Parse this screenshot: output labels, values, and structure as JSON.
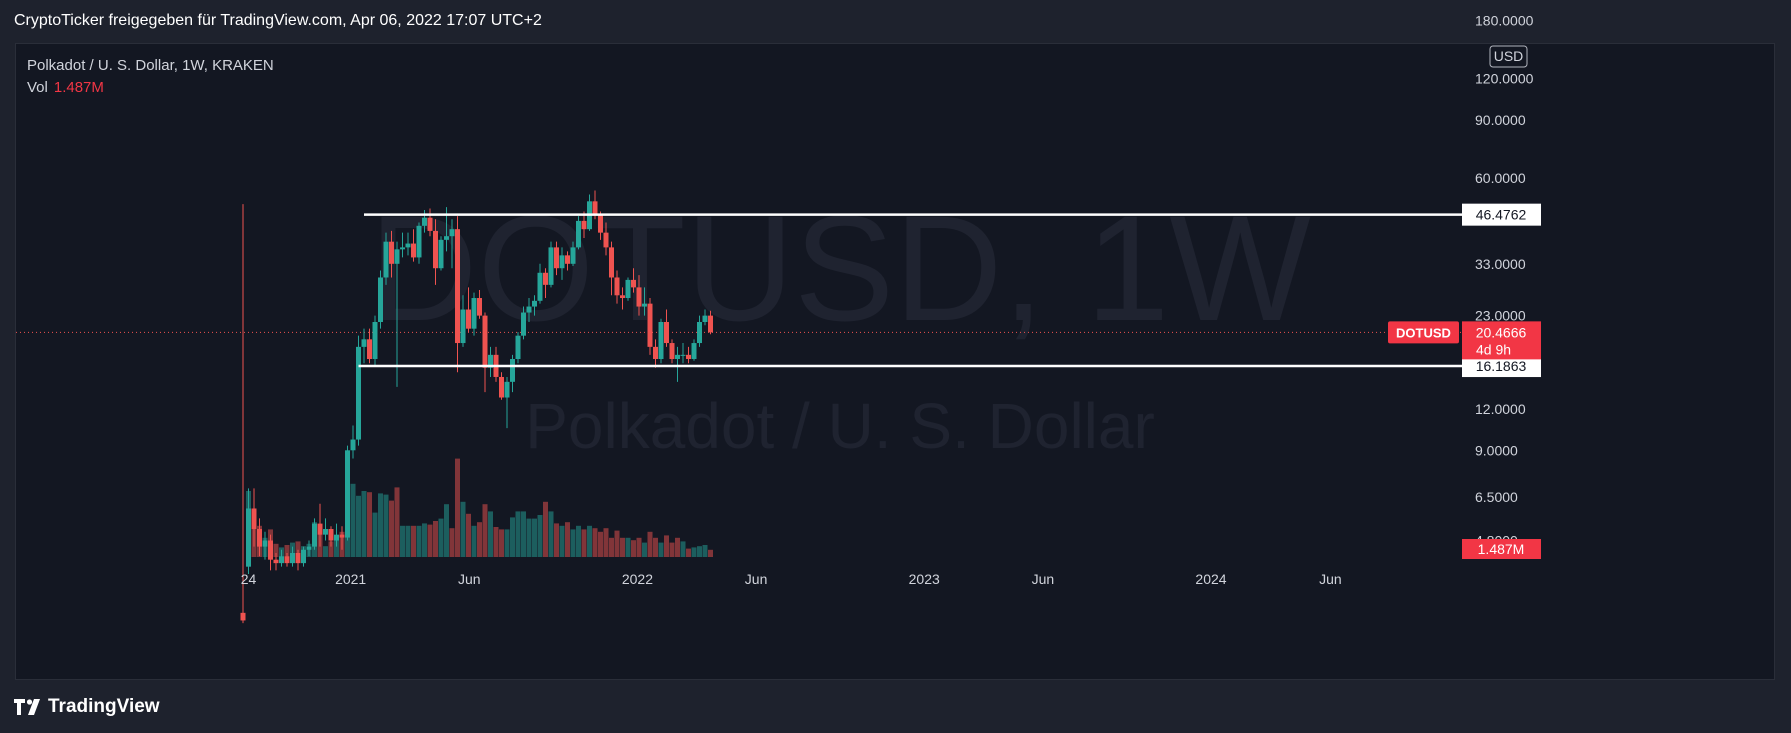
{
  "header": {
    "text": "CryptoTicker freigegeben für TradingView.com, Apr 06, 2022 17:07 UTC+2"
  },
  "legend": {
    "title": "Polkadot / U. S. Dollar, 1W, KRAKEN",
    "vol_label": "Vol",
    "vol_value": "1.487M"
  },
  "watermark": {
    "symbol": "DOTUSD, 1W",
    "name": "Polkadot / U. S. Dollar"
  },
  "footer": {
    "brand": "TradingView"
  },
  "colors": {
    "up": "#26a69a",
    "down": "#ef5350",
    "background": "#131722",
    "frame": "#1e222d",
    "text": "#d1d4dc"
  },
  "chart_data": {
    "type": "candlestick",
    "title": "Polkadot / U. S. Dollar, 1W, KRAKEN",
    "y_scale": "log",
    "currency": "USD",
    "y_ticks": [
      "180.0000",
      "120.0000",
      "90.0000",
      "60.0000",
      "33.0000",
      "23.0000",
      "12.0000",
      "9.0000",
      "6.5000",
      "4.8000"
    ],
    "x_ticks": [
      "24",
      "2021",
      "Jun",
      "2022",
      "Jun",
      "2023",
      "Jun",
      "2024",
      "Jun"
    ],
    "x_start": "2020-08-17",
    "last_price": {
      "symbol": "DOTUSD",
      "value": "20.4666",
      "countdown": "4d 9h"
    },
    "volume_label": "1.487M",
    "horizontal_lines": [
      {
        "value": 46.4762,
        "label": "46.4762",
        "from": "2021-01-18"
      },
      {
        "value": 16.1863,
        "label": "16.1863",
        "from": "2021-01-11"
      }
    ],
    "candles": [
      {
        "t": "2020-08-17",
        "o": 2.9,
        "h": 50,
        "l": 2.7,
        "c": 2.75
      },
      {
        "t": "2020-08-24",
        "o": 4.0,
        "h": 6.9,
        "l": 3.8,
        "c": 6.0
      },
      {
        "t": "2020-08-31",
        "o": 6.0,
        "h": 6.9,
        "l": 4.6,
        "c": 5.2
      },
      {
        "t": "2020-09-07",
        "o": 5.2,
        "h": 5.6,
        "l": 4.3,
        "c": 4.6
      },
      {
        "t": "2020-09-14",
        "o": 4.6,
        "h": 5.1,
        "l": 4.2,
        "c": 4.8
      },
      {
        "t": "2020-09-21",
        "o": 4.8,
        "h": 5.0,
        "l": 3.9,
        "c": 4.2
      },
      {
        "t": "2020-09-28",
        "o": 4.2,
        "h": 4.4,
        "l": 3.9,
        "c": 4.1
      },
      {
        "t": "2020-10-05",
        "o": 4.1,
        "h": 4.5,
        "l": 4.0,
        "c": 4.3
      },
      {
        "t": "2020-10-12",
        "o": 4.3,
        "h": 4.4,
        "l": 4.0,
        "c": 4.1
      },
      {
        "t": "2020-10-19",
        "o": 4.1,
        "h": 4.6,
        "l": 4.0,
        "c": 4.4
      },
      {
        "t": "2020-10-26",
        "o": 4.4,
        "h": 4.5,
        "l": 3.9,
        "c": 4.1
      },
      {
        "t": "2020-11-02",
        "o": 4.1,
        "h": 4.6,
        "l": 4.0,
        "c": 4.5
      },
      {
        "t": "2020-11-09",
        "o": 4.5,
        "h": 4.8,
        "l": 4.3,
        "c": 4.6
      },
      {
        "t": "2020-11-16",
        "o": 4.6,
        "h": 5.6,
        "l": 4.5,
        "c": 5.4
      },
      {
        "t": "2020-11-23",
        "o": 5.4,
        "h": 6.2,
        "l": 4.6,
        "c": 5.0
      },
      {
        "t": "2020-11-30",
        "o": 5.0,
        "h": 5.6,
        "l": 4.8,
        "c": 5.2
      },
      {
        "t": "2020-12-07",
        "o": 5.2,
        "h": 5.3,
        "l": 4.6,
        "c": 4.8
      },
      {
        "t": "2020-12-14",
        "o": 4.8,
        "h": 5.4,
        "l": 4.6,
        "c": 5.0
      },
      {
        "t": "2020-12-21",
        "o": 5.0,
        "h": 5.3,
        "l": 4.5,
        "c": 4.9
      },
      {
        "t": "2020-12-28",
        "o": 4.9,
        "h": 9.3,
        "l": 4.8,
        "c": 9.0
      },
      {
        "t": "2021-01-04",
        "o": 9.0,
        "h": 10.7,
        "l": 8.5,
        "c": 9.7
      },
      {
        "t": "2021-01-11",
        "o": 9.7,
        "h": 20,
        "l": 9.3,
        "c": 18.5
      },
      {
        "t": "2021-01-18",
        "o": 18.5,
        "h": 21.0,
        "l": 16.5,
        "c": 19.5
      },
      {
        "t": "2021-01-25",
        "o": 19.5,
        "h": 21.0,
        "l": 16.5,
        "c": 17.0
      },
      {
        "t": "2021-02-01",
        "o": 17.0,
        "h": 23.0,
        "l": 16.3,
        "c": 22.0
      },
      {
        "t": "2021-02-08",
        "o": 22.0,
        "h": 31.5,
        "l": 21.0,
        "c": 30.0
      },
      {
        "t": "2021-02-15",
        "o": 30.0,
        "h": 41.0,
        "l": 28.5,
        "c": 38.5
      },
      {
        "t": "2021-02-22",
        "o": 38.5,
        "h": 41.5,
        "l": 30.0,
        "c": 33.0
      },
      {
        "t": "2021-03-01",
        "o": 33.0,
        "h": 38.5,
        "l": 14,
        "c": 36.5
      },
      {
        "t": "2021-03-08",
        "o": 36.5,
        "h": 41.0,
        "l": 34.5,
        "c": 37.0
      },
      {
        "t": "2021-03-15",
        "o": 37.0,
        "h": 41.0,
        "l": 35.0,
        "c": 38.0
      },
      {
        "t": "2021-03-22",
        "o": 38.0,
        "h": 42.0,
        "l": 33.5,
        "c": 34.5
      },
      {
        "t": "2021-03-29",
        "o": 34.5,
        "h": 44.0,
        "l": 33.0,
        "c": 43.0
      },
      {
        "t": "2021-04-05",
        "o": 43.0,
        "h": 48.0,
        "l": 41.0,
        "c": 45.5
      },
      {
        "t": "2021-04-12",
        "o": 45.5,
        "h": 48.5,
        "l": 40.0,
        "c": 41.5
      },
      {
        "t": "2021-04-19",
        "o": 41.5,
        "h": 45.0,
        "l": 28.5,
        "c": 32.0
      },
      {
        "t": "2021-04-26",
        "o": 32.0,
        "h": 40.0,
        "l": 31.5,
        "c": 39.0
      },
      {
        "t": "2021-05-03",
        "o": 39.0,
        "h": 49.0,
        "l": 36.0,
        "c": 40.0
      },
      {
        "t": "2021-05-10",
        "o": 40.0,
        "h": 45.0,
        "l": 32.0,
        "c": 42.0
      },
      {
        "t": "2021-05-17",
        "o": 42.0,
        "h": 46.0,
        "l": 15.5,
        "c": 19.0
      },
      {
        "t": "2021-05-24",
        "o": 19.0,
        "h": 26.5,
        "l": 18.5,
        "c": 24.0
      },
      {
        "t": "2021-05-31",
        "o": 24.0,
        "h": 28.0,
        "l": 20.5,
        "c": 21.0
      },
      {
        "t": "2021-06-07",
        "o": 21.0,
        "h": 27.0,
        "l": 20.0,
        "c": 26.0
      },
      {
        "t": "2021-06-14",
        "o": 26.0,
        "h": 27.5,
        "l": 22.5,
        "c": 23.0
      },
      {
        "t": "2021-06-21",
        "o": 23.0,
        "h": 23.5,
        "l": 13.5,
        "c": 16.0
      },
      {
        "t": "2021-06-28",
        "o": 16.0,
        "h": 18.5,
        "l": 15.0,
        "c": 17.5
      },
      {
        "t": "2021-07-05",
        "o": 17.5,
        "h": 18.5,
        "l": 14.5,
        "c": 15.0
      },
      {
        "t": "2021-07-12",
        "o": 15.0,
        "h": 15.5,
        "l": 12.8,
        "c": 13.0
      },
      {
        "t": "2021-07-19",
        "o": 13.0,
        "h": 15.0,
        "l": 10.5,
        "c": 14.5
      },
      {
        "t": "2021-07-26",
        "o": 14.5,
        "h": 17.5,
        "l": 13.5,
        "c": 17.0
      },
      {
        "t": "2021-08-02",
        "o": 17.0,
        "h": 20.5,
        "l": 16.5,
        "c": 20.0
      },
      {
        "t": "2021-08-09",
        "o": 20.0,
        "h": 24.5,
        "l": 19.5,
        "c": 23.5
      },
      {
        "t": "2021-08-16",
        "o": 23.5,
        "h": 26.0,
        "l": 22.0,
        "c": 24.5
      },
      {
        "t": "2021-08-23",
        "o": 24.5,
        "h": 26.5,
        "l": 23.0,
        "c": 25.5
      },
      {
        "t": "2021-08-30",
        "o": 25.5,
        "h": 33.0,
        "l": 25.0,
        "c": 31.0
      },
      {
        "t": "2021-09-06",
        "o": 31.0,
        "h": 32.0,
        "l": 26.0,
        "c": 28.5
      },
      {
        "t": "2021-09-13",
        "o": 28.5,
        "h": 38.5,
        "l": 28.0,
        "c": 37.0
      },
      {
        "t": "2021-09-20",
        "o": 37.0,
        "h": 38.5,
        "l": 30.5,
        "c": 32.0
      },
      {
        "t": "2021-09-27",
        "o": 32.0,
        "h": 37.0,
        "l": 29.5,
        "c": 35.0
      },
      {
        "t": "2021-10-04",
        "o": 35.0,
        "h": 36.0,
        "l": 31.5,
        "c": 33.0
      },
      {
        "t": "2021-10-11",
        "o": 33.0,
        "h": 38.5,
        "l": 32.5,
        "c": 37.0
      },
      {
        "t": "2021-10-18",
        "o": 37.0,
        "h": 46.0,
        "l": 36.5,
        "c": 44.5
      },
      {
        "t": "2021-10-25",
        "o": 44.5,
        "h": 47.5,
        "l": 39.5,
        "c": 42.0
      },
      {
        "t": "2021-11-01",
        "o": 42.0,
        "h": 53.5,
        "l": 41.5,
        "c": 51.0
      },
      {
        "t": "2021-11-08",
        "o": 51.0,
        "h": 55.0,
        "l": 45.0,
        "c": 46.5
      },
      {
        "t": "2021-11-15",
        "o": 46.5,
        "h": 47.5,
        "l": 39.0,
        "c": 41.0
      },
      {
        "t": "2021-11-22",
        "o": 41.0,
        "h": 44.0,
        "l": 35.0,
        "c": 37.0
      },
      {
        "t": "2021-11-29",
        "o": 37.0,
        "h": 38.5,
        "l": 26.5,
        "c": 30.0
      },
      {
        "t": "2021-12-06",
        "o": 30.0,
        "h": 31.5,
        "l": 25.0,
        "c": 26.5
      },
      {
        "t": "2021-12-13",
        "o": 26.5,
        "h": 28.0,
        "l": 24.0,
        "c": 26.0
      },
      {
        "t": "2021-12-20",
        "o": 26.0,
        "h": 30.0,
        "l": 25.5,
        "c": 29.5
      },
      {
        "t": "2021-12-27",
        "o": 29.5,
        "h": 32.0,
        "l": 27.0,
        "c": 28.0
      },
      {
        "t": "2022-01-03",
        "o": 28.0,
        "h": 30.5,
        "l": 23.0,
        "c": 24.5
      },
      {
        "t": "2022-01-10",
        "o": 24.5,
        "h": 28.0,
        "l": 23.0,
        "c": 25.0
      },
      {
        "t": "2022-01-17",
        "o": 25.0,
        "h": 26.0,
        "l": 17.5,
        "c": 18.5
      },
      {
        "t": "2022-01-24",
        "o": 18.5,
        "h": 19.5,
        "l": 16.0,
        "c": 17.0
      },
      {
        "t": "2022-01-31",
        "o": 17.0,
        "h": 22.5,
        "l": 16.5,
        "c": 22.0
      },
      {
        "t": "2022-02-07",
        "o": 22.0,
        "h": 24.0,
        "l": 18.5,
        "c": 19.0
      },
      {
        "t": "2022-02-14",
        "o": 19.0,
        "h": 19.5,
        "l": 16.5,
        "c": 17.0
      },
      {
        "t": "2022-02-21",
        "o": 17.0,
        "h": 18.5,
        "l": 14.5,
        "c": 17.5
      },
      {
        "t": "2022-02-28",
        "o": 17.5,
        "h": 19.0,
        "l": 16.5,
        "c": 17.5
      },
      {
        "t": "2022-03-07",
        "o": 17.5,
        "h": 18.5,
        "l": 16.5,
        "c": 17.0
      },
      {
        "t": "2022-03-14",
        "o": 17.0,
        "h": 19.5,
        "l": 16.8,
        "c": 19.0
      },
      {
        "t": "2022-03-21",
        "o": 19.0,
        "h": 23.0,
        "l": 18.5,
        "c": 22.0
      },
      {
        "t": "2022-03-28",
        "o": 22.0,
        "h": 24.0,
        "l": 21.5,
        "c": 23.0
      },
      {
        "t": "2022-04-04",
        "o": 23.0,
        "h": 23.8,
        "l": 20.2,
        "c": 20.4666
      }
    ],
    "volume": [
      {
        "t": "2020-08-17",
        "v": 0
      },
      {
        "t": "2020-08-24",
        "v": 5.5,
        "up": true
      },
      {
        "t": "2020-08-31",
        "v": 4.0,
        "up": false
      },
      {
        "t": "2020-09-07",
        "v": 2.6,
        "up": false
      },
      {
        "t": "2020-09-14",
        "v": 1.6,
        "up": true
      },
      {
        "t": "2020-09-21",
        "v": 2.3,
        "up": false
      },
      {
        "t": "2020-09-28",
        "v": 1.1,
        "up": false
      },
      {
        "t": "2020-10-05",
        "v": 0.8,
        "up": true
      },
      {
        "t": "2020-10-12",
        "v": 1.0,
        "up": false
      },
      {
        "t": "2020-10-19",
        "v": 1.2,
        "up": true
      },
      {
        "t": "2020-10-26",
        "v": 1.3,
        "up": false
      },
      {
        "t": "2020-11-02",
        "v": 0.9,
        "up": true
      },
      {
        "t": "2020-11-09",
        "v": 1.1,
        "up": true
      },
      {
        "t": "2020-11-16",
        "v": 2.9,
        "up": true
      },
      {
        "t": "2020-11-23",
        "v": 2.7,
        "up": false
      },
      {
        "t": "2020-11-30",
        "v": 0.9,
        "up": true
      },
      {
        "t": "2020-12-07",
        "v": 1.3,
        "up": false
      },
      {
        "t": "2020-12-14",
        "v": 1.8,
        "up": true
      },
      {
        "t": "2020-12-21",
        "v": 2.1,
        "up": false
      },
      {
        "t": "2020-12-28",
        "v": 5.5,
        "up": true
      },
      {
        "t": "2021-01-04",
        "v": 6.1,
        "up": true
      },
      {
        "t": "2021-01-11",
        "v": 5.1,
        "up": true
      },
      {
        "t": "2021-01-18",
        "v": 5.5,
        "up": true
      },
      {
        "t": "2021-01-25",
        "v": 5.4,
        "up": false
      },
      {
        "t": "2021-02-01",
        "v": 3.7,
        "up": true
      },
      {
        "t": "2021-02-08",
        "v": 5.3,
        "up": true
      },
      {
        "t": "2021-02-15",
        "v": 5.2,
        "up": true
      },
      {
        "t": "2021-02-22",
        "v": 4.7,
        "up": false
      },
      {
        "t": "2021-03-01",
        "v": 5.8,
        "up": false
      },
      {
        "t": "2021-03-08",
        "v": 2.6,
        "up": true
      },
      {
        "t": "2021-03-15",
        "v": 2.6,
        "up": true
      },
      {
        "t": "2021-03-22",
        "v": 2.6,
        "up": false
      },
      {
        "t": "2021-03-29",
        "v": 2.6,
        "up": true
      },
      {
        "t": "2021-04-05",
        "v": 2.8,
        "up": true
      },
      {
        "t": "2021-04-12",
        "v": 2.7,
        "up": false
      },
      {
        "t": "2021-04-19",
        "v": 3.0,
        "up": false
      },
      {
        "t": "2021-04-26",
        "v": 3.2,
        "up": true
      },
      {
        "t": "2021-05-03",
        "v": 4.4,
        "up": true
      },
      {
        "t": "2021-05-10",
        "v": 2.4,
        "up": false
      },
      {
        "t": "2021-05-17",
        "v": 8.2,
        "up": false
      },
      {
        "t": "2021-05-24",
        "v": 4.6,
        "up": true
      },
      {
        "t": "2021-05-31",
        "v": 3.6,
        "up": false
      },
      {
        "t": "2021-06-07",
        "v": 2.6,
        "up": true
      },
      {
        "t": "2021-06-14",
        "v": 2.9,
        "up": false
      },
      {
        "t": "2021-06-21",
        "v": 4.4,
        "up": false
      },
      {
        "t": "2021-06-28",
        "v": 3.8,
        "up": true
      },
      {
        "t": "2021-07-05",
        "v": 2.5,
        "up": false
      },
      {
        "t": "2021-07-12",
        "v": 2.3,
        "up": false
      },
      {
        "t": "2021-07-19",
        "v": 2.3,
        "up": true
      },
      {
        "t": "2021-07-26",
        "v": 3.3,
        "up": true
      },
      {
        "t": "2021-08-02",
        "v": 3.8,
        "up": true
      },
      {
        "t": "2021-08-09",
        "v": 3.8,
        "up": true
      },
      {
        "t": "2021-08-16",
        "v": 3.2,
        "up": true
      },
      {
        "t": "2021-08-23",
        "v": 3.2,
        "up": true
      },
      {
        "t": "2021-08-30",
        "v": 3.5,
        "up": true
      },
      {
        "t": "2021-09-06",
        "v": 4.6,
        "up": false
      },
      {
        "t": "2021-09-13",
        "v": 3.8,
        "up": true
      },
      {
        "t": "2021-09-20",
        "v": 2.8,
        "up": false
      },
      {
        "t": "2021-09-27",
        "v": 2.6,
        "up": true
      },
      {
        "t": "2021-10-04",
        "v": 2.9,
        "up": false
      },
      {
        "t": "2021-10-11",
        "v": 2.3,
        "up": true
      },
      {
        "t": "2021-10-18",
        "v": 2.6,
        "up": true
      },
      {
        "t": "2021-10-25",
        "v": 2.3,
        "up": false
      },
      {
        "t": "2021-11-01",
        "v": 2.6,
        "up": true
      },
      {
        "t": "2021-11-08",
        "v": 2.4,
        "up": false
      },
      {
        "t": "2021-11-15",
        "v": 2.1,
        "up": false
      },
      {
        "t": "2021-11-22",
        "v": 2.4,
        "up": false
      },
      {
        "t": "2021-11-29",
        "v": 1.6,
        "up": false
      },
      {
        "t": "2021-12-06",
        "v": 2.2,
        "up": false
      },
      {
        "t": "2021-12-13",
        "v": 1.6,
        "up": false
      },
      {
        "t": "2021-12-20",
        "v": 1.6,
        "up": true
      },
      {
        "t": "2021-12-27",
        "v": 1.4,
        "up": false
      },
      {
        "t": "2022-01-03",
        "v": 1.6,
        "up": false
      },
      {
        "t": "2022-01-10",
        "v": 1.2,
        "up": true
      },
      {
        "t": "2022-01-17",
        "v": 2.1,
        "up": false
      },
      {
        "t": "2022-01-24",
        "v": 1.6,
        "up": false
      },
      {
        "t": "2022-01-31",
        "v": 1.2,
        "up": true
      },
      {
        "t": "2022-02-07",
        "v": 1.8,
        "up": false
      },
      {
        "t": "2022-02-14",
        "v": 1.2,
        "up": false
      },
      {
        "t": "2022-02-21",
        "v": 1.6,
        "up": false
      },
      {
        "t": "2022-02-28",
        "v": 1.3,
        "up": true
      },
      {
        "t": "2022-03-07",
        "v": 0.7,
        "up": false
      },
      {
        "t": "2022-03-14",
        "v": 0.8,
        "up": true
      },
      {
        "t": "2022-03-21",
        "v": 0.9,
        "up": true
      },
      {
        "t": "2022-03-28",
        "v": 1.0,
        "up": true
      },
      {
        "t": "2022-04-04",
        "v": 0.6,
        "up": false
      }
    ]
  }
}
